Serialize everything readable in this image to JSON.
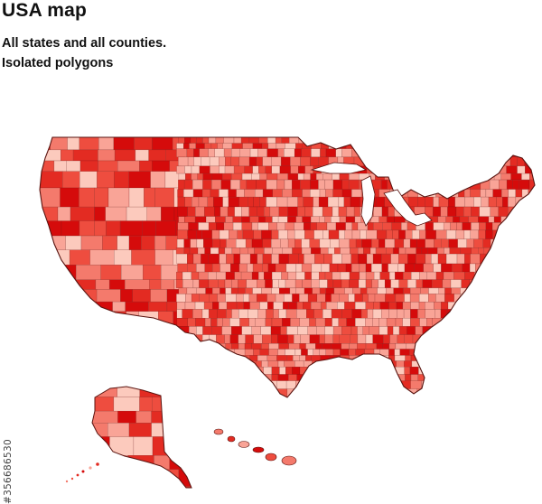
{
  "header": {
    "title": "USA map",
    "subtitle_line1": "All states and all counties.",
    "subtitle_line2": "Isolated polygons"
  },
  "watermark": {
    "id_text": "#356686530"
  },
  "map": {
    "regions": [
      "contiguous-united-states",
      "alaska",
      "hawaii"
    ],
    "fill_palette": [
      "#d50b0b",
      "#e32b22",
      "#ee4d3f",
      "#f47a6c",
      "#f9a497",
      "#fccabd"
    ],
    "border_color": "#6b1a16",
    "background": "#ffffff"
  }
}
